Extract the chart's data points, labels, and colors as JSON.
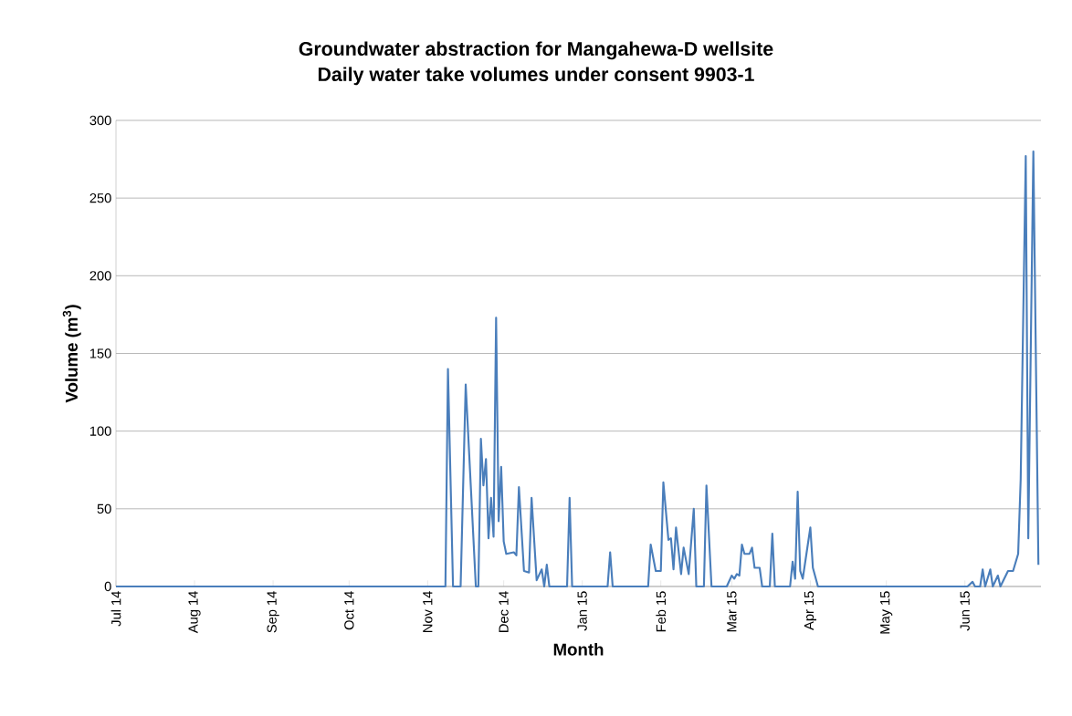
{
  "chart_data": {
    "type": "line",
    "title": "Groundwater abstraction for Mangahewa-D wellsite",
    "subtitle": "Daily water take volumes under consent 9903-1",
    "xlabel": "Month",
    "ylabel": "Volume (m$^{3}$)",
    "x": [
      "2014-07-01",
      "2014-11-08",
      "2014-11-09",
      "2014-11-11",
      "2014-11-14",
      "2014-11-16",
      "2014-11-20",
      "2014-11-21",
      "2014-11-22",
      "2014-11-23",
      "2014-11-24",
      "2014-11-25",
      "2014-11-26",
      "2014-11-27",
      "2014-11-28",
      "2014-11-29",
      "2014-11-30",
      "2014-12-01",
      "2014-12-02",
      "2014-12-05",
      "2014-12-06",
      "2014-12-07",
      "2014-12-09",
      "2014-12-11",
      "2014-12-12",
      "2014-12-14",
      "2014-12-16",
      "2014-12-17",
      "2014-12-18",
      "2014-12-19",
      "2014-12-26",
      "2014-12-27",
      "2014-12-28",
      "2015-01-11",
      "2015-01-12",
      "2015-01-13",
      "2015-01-27",
      "2015-01-28",
      "2015-01-30",
      "2015-02-01",
      "2015-02-02",
      "2015-02-04",
      "2015-02-05",
      "2015-02-06",
      "2015-02-07",
      "2015-02-09",
      "2015-02-10",
      "2015-02-12",
      "2015-02-14",
      "2015-02-15",
      "2015-02-18",
      "2015-02-19",
      "2015-02-21",
      "2015-02-27",
      "2015-03-01",
      "2015-03-02",
      "2015-03-03",
      "2015-03-04",
      "2015-03-05",
      "2015-03-06",
      "2015-03-08",
      "2015-03-09",
      "2015-03-10",
      "2015-03-12",
      "2015-03-13",
      "2015-03-16",
      "2015-03-17",
      "2015-03-18",
      "2015-03-24",
      "2015-03-25",
      "2015-03-26",
      "2015-03-27",
      "2015-03-28",
      "2015-03-29",
      "2015-04-01",
      "2015-04-02",
      "2015-04-04",
      "2015-06-02",
      "2015-06-04",
      "2015-06-05",
      "2015-06-07",
      "2015-06-08",
      "2015-06-09",
      "2015-06-11",
      "2015-06-12",
      "2015-06-14",
      "2015-06-15",
      "2015-06-18",
      "2015-06-20",
      "2015-06-22",
      "2015-06-23",
      "2015-06-25",
      "2015-06-26",
      "2015-06-28",
      "2015-06-30"
    ],
    "series": [
      {
        "color": "#4a7ebb",
        "values": [
          0,
          0,
          140,
          0,
          0,
          130,
          0,
          0,
          95,
          65,
          82,
          31,
          57,
          32,
          173,
          42,
          77,
          29,
          21,
          22,
          20,
          64,
          10,
          9,
          57,
          4,
          11,
          0,
          14,
          0,
          0,
          57,
          0,
          0,
          22,
          0,
          0,
          27,
          10,
          10,
          67,
          30,
          31,
          11,
          38,
          8,
          25,
          8,
          50,
          0,
          0,
          65,
          0,
          0,
          7,
          5,
          8,
          7,
          27,
          21,
          21,
          25,
          12,
          12,
          0,
          0,
          34,
          0,
          0,
          16,
          5,
          61,
          10,
          5,
          38,
          12,
          0,
          0,
          3,
          0,
          0,
          11,
          0,
          11,
          0,
          7,
          0,
          10,
          10,
          21,
          69,
          277,
          31,
          280,
          14
        ]
      }
    ],
    "xlim": [
      "2014-07-01",
      "2015-07-01"
    ],
    "xticks": [
      {
        "value": "2014-07-01",
        "label": "Jul 14"
      },
      {
        "value": "2014-08-01",
        "label": "Aug 14"
      },
      {
        "value": "2014-09-01",
        "label": "Sep 14"
      },
      {
        "value": "2014-10-01",
        "label": "Oct 14"
      },
      {
        "value": "2014-11-01",
        "label": "Nov 14"
      },
      {
        "value": "2014-12-01",
        "label": "Dec 14"
      },
      {
        "value": "2015-01-01",
        "label": "Jan 15"
      },
      {
        "value": "2015-02-01",
        "label": "Feb 15"
      },
      {
        "value": "2015-03-01",
        "label": "Mar 15"
      },
      {
        "value": "2015-04-01",
        "label": "Apr 15"
      },
      {
        "value": "2015-05-01",
        "label": "May 15"
      },
      {
        "value": "2015-06-01",
        "label": "Jun 15"
      }
    ],
    "ylim": [
      0,
      300
    ],
    "yticks": [
      0,
      50,
      100,
      150,
      200,
      250,
      300
    ],
    "grid": "y"
  }
}
